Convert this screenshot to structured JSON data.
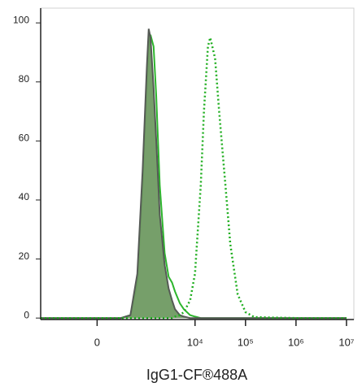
{
  "chart_data": {
    "type": "histogram-overlay",
    "x_label": "IgG1-CF®488A",
    "xscale": "asinh",
    "xscale_width": 230,
    "xlim": [
      -1500,
      14000000
    ],
    "xticks": [
      0,
      {
        "value": 10000,
        "label": "10⁴"
      },
      {
        "value": 100000,
        "label": "10⁵"
      },
      {
        "value": 1000000,
        "label": "10⁶"
      },
      {
        "value": 10000000,
        "label": "10⁷"
      }
    ],
    "ylim": [
      -0.5,
      105
    ],
    "yticks": [
      0,
      20,
      40,
      60,
      80,
      100
    ],
    "x": [
      -1500,
      -500,
      0,
      300,
      500,
      700,
      900,
      1100,
      1200,
      1300,
      1500,
      1700,
      2000,
      2500,
      3000,
      3500,
      4000,
      5000,
      6000,
      8000,
      10000,
      13000,
      15000,
      18000,
      20000,
      25000,
      30000,
      40000,
      50000,
      70000,
      100000,
      150000,
      1000000,
      10000000
    ],
    "series": [
      {
        "color": "#2db52d",
        "style": "solid",
        "values": [
          0,
          0,
          0,
          0,
          1,
          12,
          45,
          80,
          92,
          96,
          92,
          75,
          45,
          22,
          14,
          12,
          9,
          5,
          3,
          1,
          0.5,
          0,
          0,
          0,
          0,
          0,
          0,
          0,
          0,
          0,
          0,
          0,
          0,
          0
        ]
      },
      {
        "color": "#555a55",
        "fill": "#6f9a62",
        "style": "solid",
        "values": [
          0,
          0,
          0,
          0,
          1,
          15,
          50,
          85,
          98,
          95,
          78,
          60,
          35,
          18,
          10,
          6,
          3,
          1,
          0.5,
          0,
          0,
          0,
          0,
          0,
          0,
          0,
          0,
          0,
          0,
          0,
          0,
          0,
          0,
          0
        ]
      },
      {
        "color": "#1fae1f",
        "style": "dotted",
        "values": [
          0,
          0,
          0,
          0,
          0,
          0,
          0,
          0,
          0,
          0,
          0,
          0,
          0,
          0,
          0,
          0,
          0.5,
          1,
          2,
          6,
          15,
          45,
          70,
          92,
          95,
          88,
          70,
          45,
          25,
          8,
          2,
          0.3,
          0,
          0
        ]
      }
    ]
  }
}
